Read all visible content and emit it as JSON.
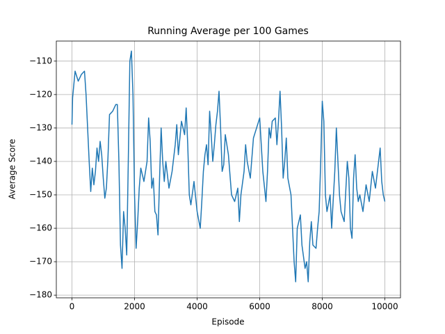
{
  "chart_data": {
    "type": "line",
    "title": "Running Average per 100 Games",
    "x_label": "Episode",
    "y_label": "Average Score",
    "x": [
      0,
      20,
      100,
      200,
      300,
      400,
      450,
      500,
      550,
      600,
      650,
      700,
      750,
      800,
      850,
      900,
      950,
      1000,
      1050,
      1100,
      1150,
      1200,
      1300,
      1400,
      1450,
      1500,
      1550,
      1600,
      1650,
      1700,
      1750,
      1800,
      1850,
      1900,
      1950,
      2000,
      2050,
      2100,
      2150,
      2200,
      2300,
      2400,
      2450,
      2500,
      2550,
      2600,
      2650,
      2700,
      2750,
      2800,
      2850,
      2900,
      2950,
      3000,
      3100,
      3200,
      3300,
      3350,
      3400,
      3500,
      3600,
      3650,
      3700,
      3750,
      3800,
      3900,
      4000,
      4100,
      4150,
      4200,
      4250,
      4300,
      4350,
      4400,
      4450,
      4500,
      4550,
      4600,
      4650,
      4700,
      4750,
      4800,
      4850,
      4900,
      5000,
      5100,
      5200,
      5300,
      5350,
      5400,
      5500,
      5550,
      5600,
      5700,
      5800,
      5900,
      6000,
      6100,
      6200,
      6250,
      6300,
      6350,
      6400,
      6500,
      6550,
      6600,
      6650,
      6700,
      6750,
      6800,
      6850,
      6900,
      7000,
      7100,
      7150,
      7200,
      7300,
      7350,
      7450,
      7500,
      7550,
      7600,
      7650,
      7700,
      7800,
      7850,
      7900,
      7950,
      8000,
      8050,
      8100,
      8150,
      8250,
      8300,
      8400,
      8450,
      8500,
      8550,
      8600,
      8700,
      8800,
      8850,
      8900,
      8950,
      9000,
      9050,
      9100,
      9150,
      9200,
      9300,
      9400,
      9500,
      9600,
      9700,
      9800,
      9850,
      9900,
      9950,
      10000
    ],
    "series": [
      {
        "name": "Average Score",
        "color": "#1f77b4",
        "values": [
          -129,
          -121,
          -113,
          -116,
          -114,
          -113,
          -120,
          -130,
          -140,
          -149,
          -142,
          -147,
          -143,
          -136,
          -140,
          -134,
          -138,
          -145,
          -151,
          -148,
          -139,
          -126,
          -125,
          -123,
          -123,
          -140,
          -165,
          -172,
          -155,
          -160,
          -168,
          -140,
          -110,
          -107,
          -120,
          -150,
          -166,
          -158,
          -148,
          -142,
          -146,
          -140,
          -127,
          -134,
          -148,
          -145,
          -155,
          -156,
          -162,
          -145,
          -130,
          -140,
          -146,
          -140,
          -148,
          -143,
          -135,
          -129,
          -138,
          -128,
          -132,
          -124,
          -135,
          -150,
          -153,
          -146,
          -155,
          -160,
          -152,
          -143,
          -138,
          -135,
          -141,
          -125,
          -132,
          -140,
          -135,
          -129,
          -125,
          -119,
          -130,
          -143,
          -141,
          -132,
          -138,
          -150,
          -152,
          -148,
          -158,
          -150,
          -143,
          -135,
          -140,
          -145,
          -133,
          -130,
          -127,
          -143,
          -152,
          -143,
          -130,
          -133,
          -128,
          -127,
          -135,
          -128,
          -119,
          -130,
          -145,
          -140,
          -133,
          -145,
          -150,
          -170,
          -176,
          -160,
          -156,
          -165,
          -172,
          -170,
          -176,
          -164,
          -158,
          -165,
          -166,
          -160,
          -155,
          -140,
          -122,
          -128,
          -150,
          -155,
          -150,
          -160,
          -143,
          -130,
          -140,
          -150,
          -155,
          -158,
          -140,
          -145,
          -160,
          -163,
          -145,
          -138,
          -148,
          -152,
          -150,
          -155,
          -147,
          -152,
          -143,
          -148,
          -140,
          -136,
          -146,
          -150,
          -152
        ]
      }
    ],
    "xlim": [
      -500,
      10500
    ],
    "xticks": [
      0,
      2000,
      4000,
      6000,
      8000,
      10000
    ],
    "ylim": [
      -180.8,
      -104.0
    ],
    "yticks": [
      {
        "value": -180,
        "label": "−180"
      },
      {
        "value": -170,
        "label": "−170"
      },
      {
        "value": -160,
        "label": "−160"
      },
      {
        "value": -150,
        "label": "−150"
      },
      {
        "value": -140,
        "label": "−140"
      },
      {
        "value": -130,
        "label": "−130"
      },
      {
        "value": -120,
        "label": "−120"
      },
      {
        "value": -110,
        "label": "−110"
      }
    ],
    "grid": true
  }
}
